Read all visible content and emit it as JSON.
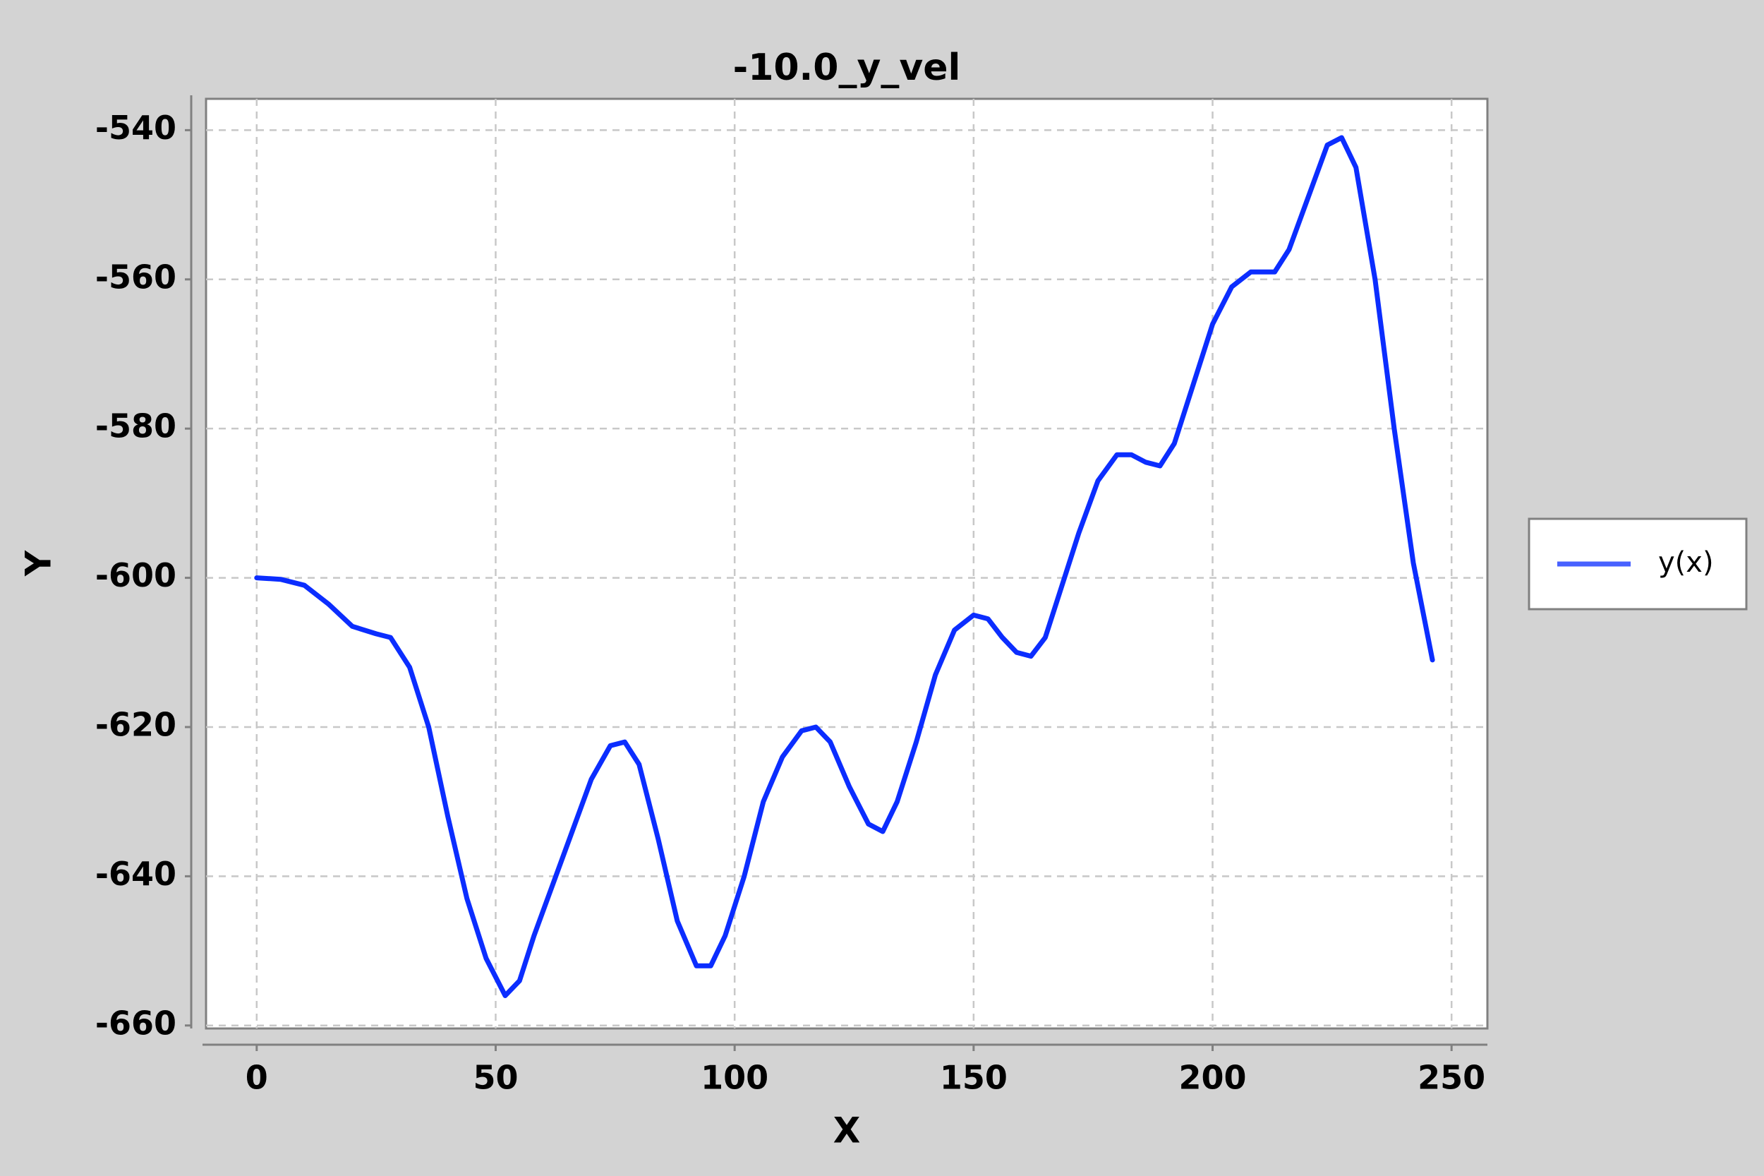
{
  "chart_data": {
    "type": "line",
    "title": "-10.0_y_vel",
    "xlabel": "X",
    "ylabel": "Y",
    "x": [
      0,
      5,
      10,
      15,
      20,
      25,
      28,
      32,
      36,
      40,
      44,
      48,
      52,
      55,
      58,
      62,
      66,
      70,
      74,
      77,
      80,
      84,
      88,
      92,
      95,
      98,
      102,
      106,
      110,
      114,
      117,
      120,
      124,
      128,
      131,
      134,
      138,
      142,
      146,
      150,
      153,
      156,
      159,
      162,
      165,
      168,
      172,
      176,
      180,
      183,
      186,
      189,
      192,
      196,
      200,
      204,
      208,
      213,
      216,
      220,
      224,
      227,
      230,
      234,
      238,
      242,
      246
    ],
    "series": [
      {
        "name": "y(x)",
        "color": "#0b2dff",
        "values": [
          -600,
          -600.2,
          -601,
          -603.5,
          -606.5,
          -607.5,
          -608,
          -612,
          -620,
          -632,
          -643,
          -651,
          -656,
          -654,
          -648,
          -641,
          -634,
          -627,
          -622.5,
          -622,
          -625,
          -635,
          -646,
          -652,
          -652,
          -648,
          -640,
          -630,
          -624,
          -620.5,
          -620,
          -622,
          -628,
          -633,
          -634,
          -630,
          -622,
          -613,
          -607,
          -605,
          -605.5,
          -608,
          -610,
          -610.5,
          -608,
          -602,
          -594,
          -587,
          -583.5,
          -583.5,
          -584.5,
          -585,
          -582,
          -574,
          -566,
          -561,
          -559,
          -559,
          -556,
          -549,
          -542,
          -541,
          -545,
          -560,
          -580,
          -598,
          -611
        ]
      }
    ],
    "xlim": [
      -10.6,
      257.5
    ],
    "ylim": [
      -660.4,
      -535.8
    ],
    "xticks": [
      0,
      50,
      100,
      150,
      200,
      250
    ],
    "yticks": [
      -660,
      -640,
      -620,
      -600,
      -580,
      -560,
      -540
    ],
    "grid": true,
    "legend": "right"
  }
}
